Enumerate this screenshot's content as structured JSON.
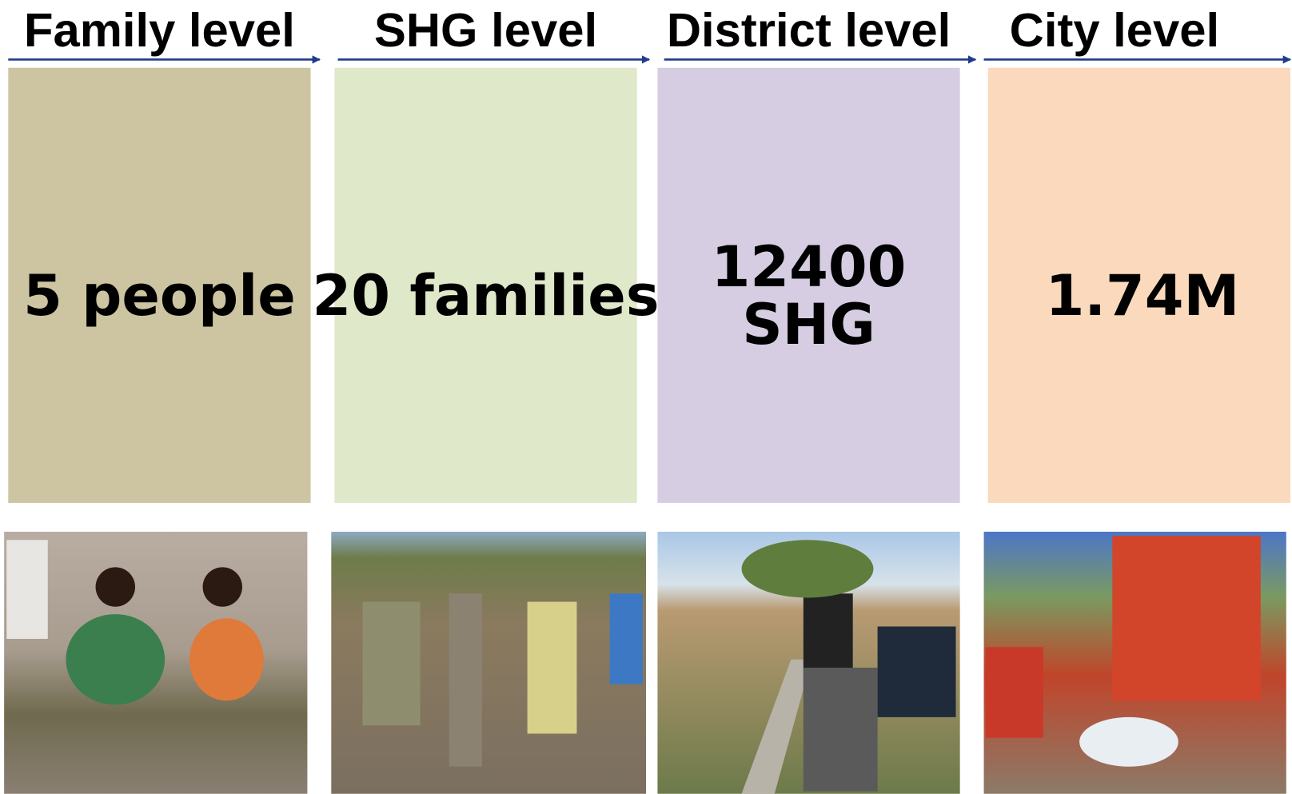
{
  "columns": [
    {
      "header": "Family level",
      "box": [
        "5 people"
      ]
    },
    {
      "header": "SHG level",
      "box": [
        "20 families"
      ]
    },
    {
      "header": "District level",
      "box": [
        "12400",
        "SHG"
      ]
    },
    {
      "header": "City level",
      "box": [
        "1.74M"
      ]
    }
  ]
}
